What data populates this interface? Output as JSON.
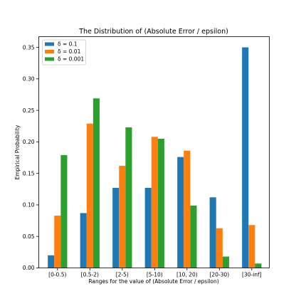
{
  "chart_data": {
    "type": "bar",
    "title": "The Distribution of (Absolute Error / epsilon)",
    "xlabel": "Ranges for the value of (Absolute Error / epsilon)",
    "ylabel": "Empirical Probability",
    "categories": [
      "[0-0.5)",
      "[0.5-2)",
      "[2-5)",
      "[5-10)",
      "[10, 20)",
      "[20-30)",
      "[30-inf]"
    ],
    "series": [
      {
        "name": "δ = 0.1",
        "color": "#1f77b4",
        "values": [
          0.02,
          0.087,
          0.127,
          0.127,
          0.176,
          0.112,
          0.35
        ]
      },
      {
        "name": "δ = 0.01",
        "color": "#ff7f0e",
        "values": [
          0.083,
          0.229,
          0.162,
          0.208,
          0.186,
          0.063,
          0.068
        ]
      },
      {
        "name": "δ = 0.001",
        "color": "#2ca02c",
        "values": [
          0.179,
          0.269,
          0.223,
          0.205,
          0.099,
          0.018,
          0.007
        ]
      }
    ],
    "ylim": [
      0,
      0.367
    ],
    "yticks": [
      "0.00",
      "0.05",
      "0.10",
      "0.15",
      "0.20",
      "0.25",
      "0.30",
      "0.35"
    ],
    "grid": false,
    "legend_position": "top-left"
  }
}
